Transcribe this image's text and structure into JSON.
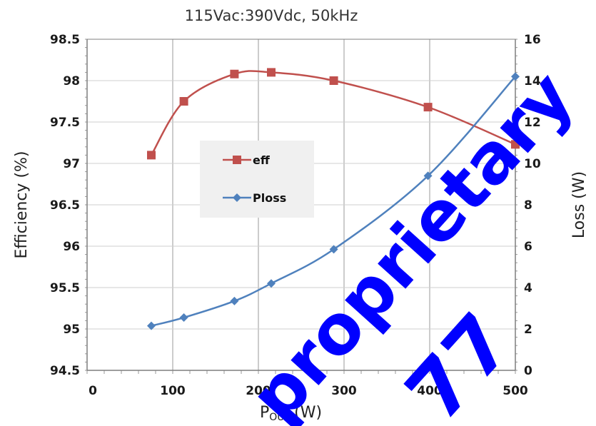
{
  "chart_data": {
    "type": "line",
    "title": "115Vac:390Vdc, 50kHz",
    "xlabel_main": "P",
    "xlabel_sub": "OUT",
    "xlabel_unit": "(W)",
    "ylabel_left": "Efficiency (%)",
    "ylabel_right": "Loss (W)",
    "xlim": [
      0,
      500
    ],
    "ylim_left": [
      94.5,
      98.5
    ],
    "ylim_right": [
      0,
      16
    ],
    "x_ticks": [
      "0",
      "100",
      "200",
      "300",
      "400",
      "500"
    ],
    "y_left_ticks": [
      "94.5",
      "95",
      "95.5",
      "96",
      "96.5",
      "97",
      "97.5",
      "98",
      "98.5"
    ],
    "y_right_ticks": [
      "0",
      "2",
      "4",
      "6",
      "8",
      "10",
      "12",
      "14",
      "16"
    ],
    "grid": true,
    "legend_position": "center-left",
    "series": [
      {
        "name": "eff",
        "axis": "left",
        "color": "#c0504d",
        "marker": "square",
        "x": [
          75,
          113,
          172,
          215,
          288,
          398,
          500
        ],
        "y": [
          97.1,
          97.75,
          98.08,
          98.1,
          98.0,
          97.68,
          97.23
        ]
      },
      {
        "name": "Ploss",
        "axis": "right",
        "color": "#4f81bd",
        "marker": "diamond",
        "x": [
          75,
          113,
          172,
          215,
          288,
          398,
          500
        ],
        "y": [
          2.15,
          2.55,
          3.35,
          4.2,
          5.85,
          9.4,
          14.2
        ]
      }
    ]
  },
  "watermark": {
    "text": "proprietary",
    "suffix": "77",
    "color": "#0000ff"
  }
}
